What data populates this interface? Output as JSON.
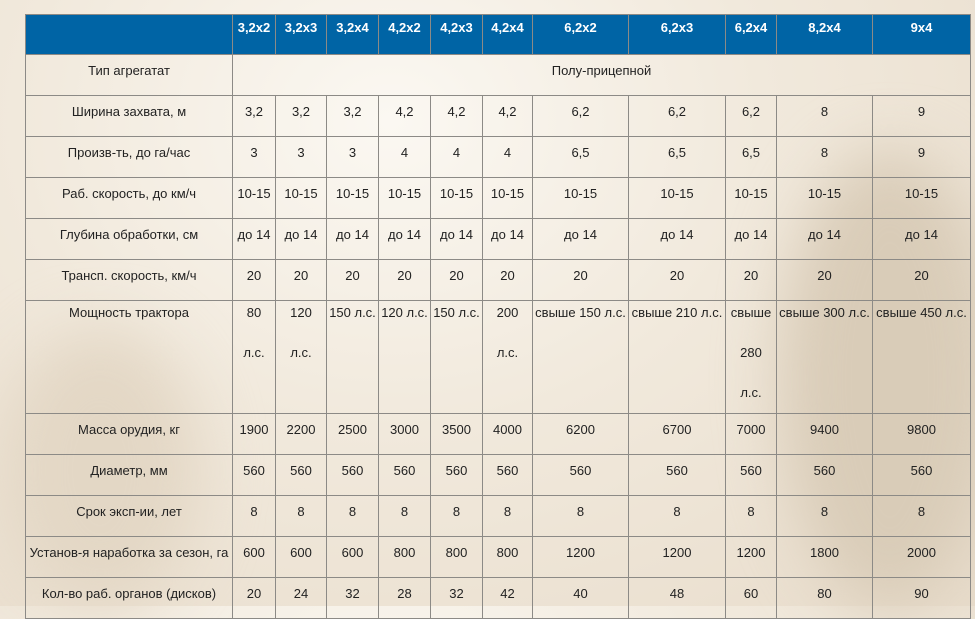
{
  "table": {
    "columns": [
      "3,2x2",
      "3,2x3",
      "3,2x4",
      "4,2x2",
      "4,2x3",
      "4,2x4",
      "6,2x2",
      "6,2x3",
      "6,2x4",
      "8,2x4",
      "9x4"
    ],
    "type_row": {
      "label": "Тип агрегатат",
      "value": "Полу-прицепной"
    },
    "rows": [
      {
        "label": "Ширина захвата, м",
        "values": [
          "3,2",
          "3,2",
          "3,2",
          "4,2",
          "4,2",
          "4,2",
          "6,2",
          "6,2",
          "6,2",
          "8",
          "9"
        ]
      },
      {
        "label": "Произв-ть,  до га/час",
        "values": [
          "3",
          "3",
          "3",
          "4",
          "4",
          "4",
          "6,5",
          "6,5",
          "6,5",
          "8",
          "9"
        ]
      },
      {
        "label": "Раб. скорость, до км/ч",
        "values": [
          "10-15",
          "10-15",
          "10-15",
          "10-15",
          "10-15",
          "10-15",
          "10-15",
          "10-15",
          "10-15",
          "10-15",
          "10-15"
        ]
      },
      {
        "label": "Глубина обработки, см",
        "values": [
          "до 14",
          "до 14",
          "до 14",
          "до 14",
          "до 14",
          "до 14",
          "до 14",
          "до 14",
          "до 14",
          "до 14",
          "до 14"
        ]
      },
      {
        "label": "Трансп. скорость, км/ч",
        "values": [
          "20",
          "20",
          "20",
          "20",
          "20",
          "20",
          "20",
          "20",
          "20",
          "20",
          "20"
        ]
      },
      {
        "label": "Мощность трактора",
        "values": [
          "80 л.с.",
          "120 л.с.",
          "150 л.с.",
          "120 л.с.",
          "150 л.с.",
          "200 л.с.",
          "свыше 150 л.с.",
          "свыше 210 л.с.",
          "свыше 280 л.с.",
          "свыше 300 л.с.",
          "свыше 450 л.с."
        ]
      },
      {
        "label": "Масса орудия, кг",
        "values": [
          "1900",
          "2200",
          "2500",
          "3000",
          "3500",
          "4000",
          "6200",
          "6700",
          "7000",
          "9400",
          "9800"
        ]
      },
      {
        "label": "Диаметр, мм",
        "values": [
          "560",
          "560",
          "560",
          "560",
          "560",
          "560",
          "560",
          "560",
          "560",
          "560",
          "560"
        ]
      },
      {
        "label": "Срок эксп-ии, лет",
        "values": [
          "8",
          "8",
          "8",
          "8",
          "8",
          "8",
          "8",
          "8",
          "8",
          "8",
          "8"
        ]
      },
      {
        "label": "Установ-я наработка за сезон, га",
        "values": [
          "600",
          "600",
          "600",
          "800",
          "800",
          "800",
          "1200",
          "1200",
          "1200",
          "1800",
          "2000"
        ]
      },
      {
        "label": "Кол-во раб. органов (дисков)",
        "values": [
          "20",
          "24",
          "32",
          "28",
          "32",
          "42",
          "40",
          "48",
          "60",
          "80",
          "90"
        ]
      }
    ]
  },
  "colors": {
    "header": "#0064a5"
  }
}
